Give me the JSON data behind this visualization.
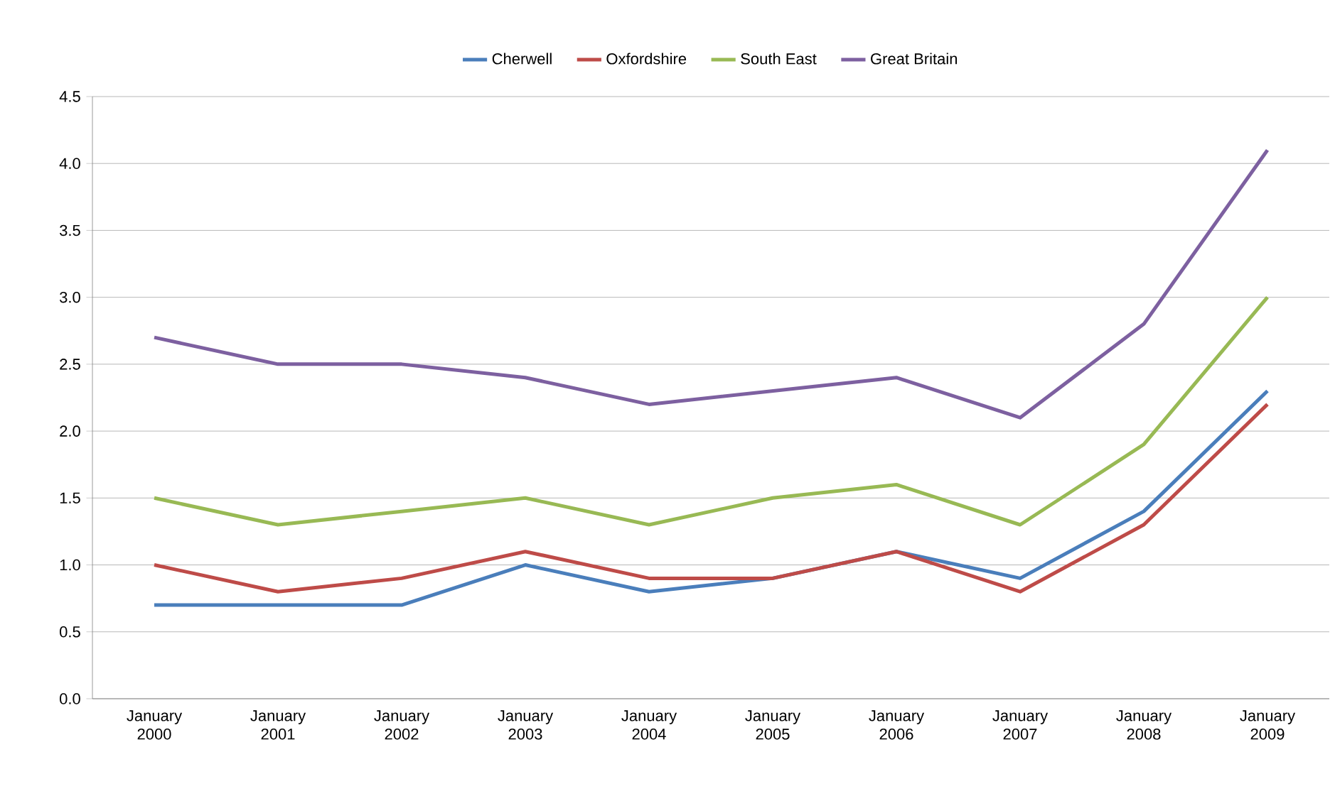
{
  "chart_data": {
    "type": "line",
    "categories": [
      "January 2000",
      "January 2001",
      "January 2002",
      "January 2003",
      "January 2004",
      "January 2005",
      "January 2006",
      "January 2007",
      "January 2008",
      "January 2009"
    ],
    "series": [
      {
        "name": "Cherwell",
        "color": "#4a7ebb",
        "values": [
          0.7,
          0.7,
          0.7,
          1.0,
          0.8,
          0.9,
          1.1,
          0.9,
          1.4,
          2.3
        ]
      },
      {
        "name": "Oxfordshire",
        "color": "#be4b48",
        "values": [
          1.0,
          0.8,
          0.9,
          1.1,
          0.9,
          0.9,
          1.1,
          0.8,
          1.3,
          2.2
        ]
      },
      {
        "name": "South East",
        "color": "#98b954",
        "values": [
          1.5,
          1.3,
          1.4,
          1.5,
          1.3,
          1.5,
          1.6,
          1.3,
          1.9,
          3.0
        ]
      },
      {
        "name": "Great Britain",
        "color": "#7d60a0",
        "values": [
          2.7,
          2.5,
          2.5,
          2.4,
          2.2,
          2.3,
          2.4,
          2.1,
          2.8,
          4.1
        ]
      }
    ],
    "ylim": [
      0,
      4.5
    ],
    "yticks": [
      {
        "value": 0,
        "label": "0.0"
      },
      {
        "value": 0.5,
        "label": "0.5"
      },
      {
        "value": 1,
        "label": "1.0"
      },
      {
        "value": 1.5,
        "label": "1.5"
      },
      {
        "value": 2,
        "label": "2.0"
      },
      {
        "value": 2.5,
        "label": "2.5"
      },
      {
        "value": 3,
        "label": "3.0"
      },
      {
        "value": 3.5,
        "label": "3.5"
      },
      {
        "value": 4,
        "label": "4.0"
      },
      {
        "value": 4.5,
        "label": "4.5"
      }
    ],
    "grid": "y",
    "legend": "top",
    "marker": "none",
    "line_style": "solid"
  }
}
